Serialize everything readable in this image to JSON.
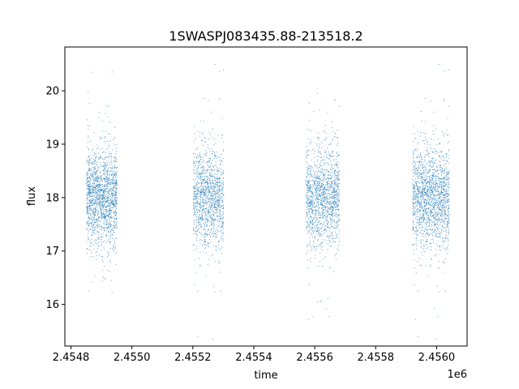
{
  "chart_data": {
    "type": "scatter",
    "title": "1SWASPJ083435.88-213518.2",
    "xlabel": "time",
    "ylabel": "flux",
    "x_offset_label": "1e6",
    "xlim": [
      2.45478,
      2.4561
    ],
    "ylim": [
      15.22,
      20.82
    ],
    "x_ticks": [
      2.4548,
      2.455,
      2.4552,
      2.4554,
      2.4556,
      2.4558,
      2.456
    ],
    "x_tick_labels": [
      "2.4548",
      "2.4550",
      "2.4552",
      "2.4554",
      "2.4556",
      "2.4558",
      "2.4560"
    ],
    "y_ticks": [
      16,
      17,
      18,
      19,
      20
    ],
    "y_tick_labels": [
      "16",
      "17",
      "18",
      "19",
      "20"
    ],
    "grid": false,
    "marker_color": "#1f77b4",
    "series": [
      {
        "clusters": [
          {
            "x_start": 2.45485,
            "x_end": 2.45495,
            "center": 18.0,
            "spread": 0.45,
            "count": 1600
          },
          {
            "x_start": 2.4552,
            "x_end": 2.4553,
            "center": 18.0,
            "spread": 0.45,
            "count": 1250
          },
          {
            "x_start": 2.45557,
            "x_end": 2.45568,
            "center": 18.0,
            "spread": 0.45,
            "count": 1400
          },
          {
            "x_start": 2.45592,
            "x_end": 2.45604,
            "center": 18.0,
            "spread": 0.45,
            "count": 1650
          }
        ]
      }
    ]
  }
}
